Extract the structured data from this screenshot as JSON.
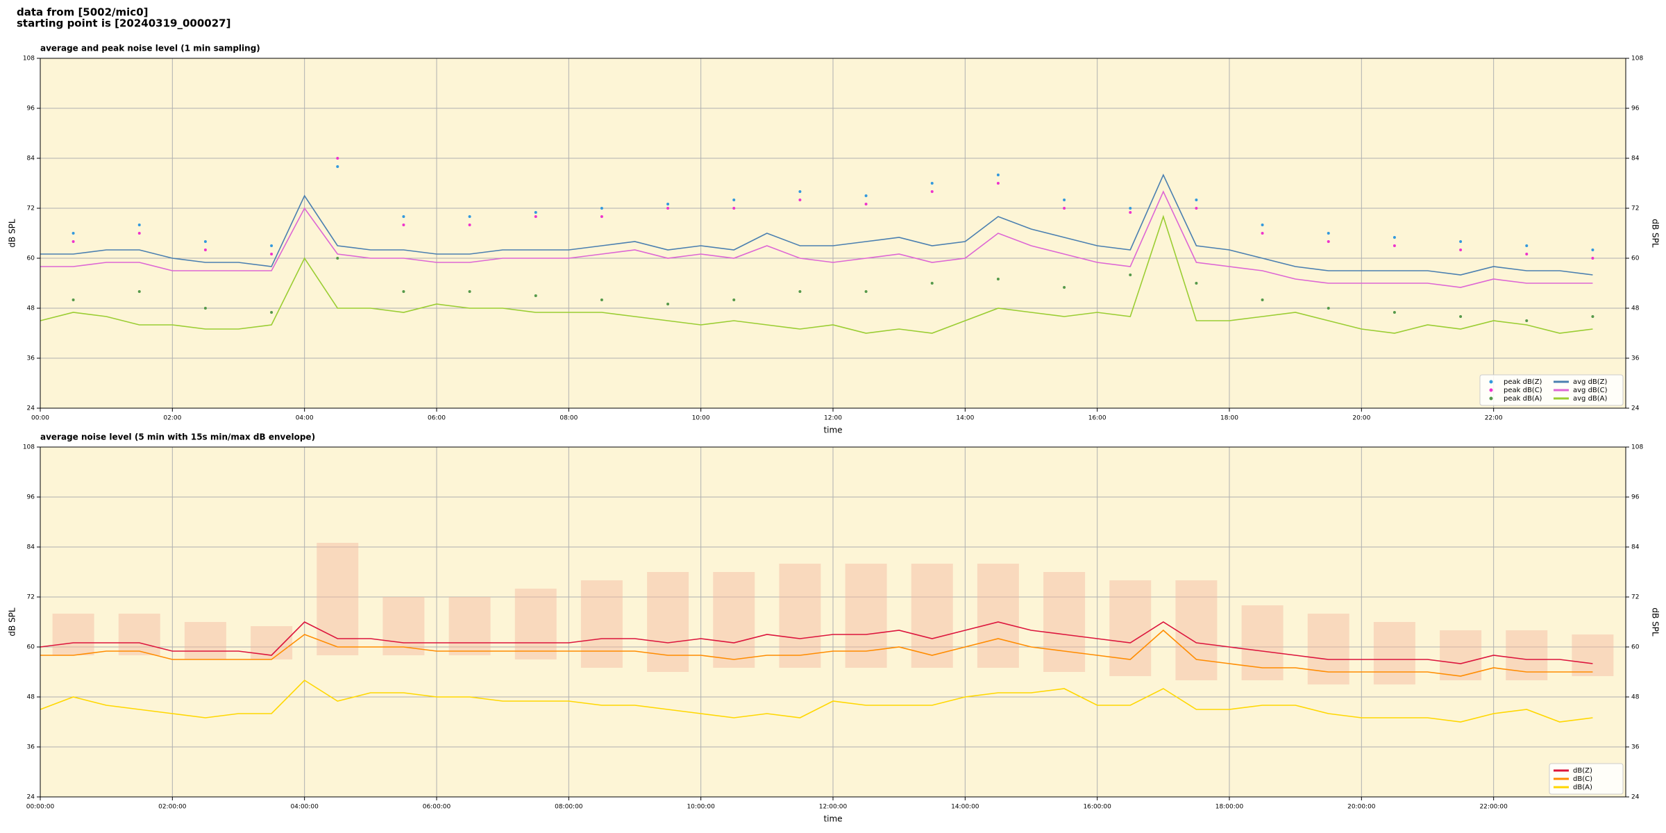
{
  "header": {
    "lines": [
      "data from [5002/mic0]",
      "starting point is [20240319_000027]"
    ]
  },
  "chart_data": [
    {
      "type": "line",
      "title": "average and peak noise level (1 min sampling)",
      "xlabel": "time",
      "ylabel": "dB SPL",
      "xlim": [
        0,
        24
      ],
      "ylim": [
        24,
        108
      ],
      "yticks": [
        24,
        36,
        48,
        60,
        72,
        84,
        96,
        108
      ],
      "xticks": [
        {
          "value": 0,
          "label": "00:00"
        },
        {
          "value": 2,
          "label": "02:00"
        },
        {
          "value": 4,
          "label": "04:00"
        },
        {
          "value": 6,
          "label": "06:00"
        },
        {
          "value": 8,
          "label": "08:00"
        },
        {
          "value": 10,
          "label": "10:00"
        },
        {
          "value": 12,
          "label": "12:00"
        },
        {
          "value": 14,
          "label": "14:00"
        },
        {
          "value": 16,
          "label": "16:00"
        },
        {
          "value": 18,
          "label": "18:00"
        },
        {
          "value": 20,
          "label": "20:00"
        },
        {
          "value": 22,
          "label": "22:00"
        }
      ],
      "grid": true,
      "legend": "lower right",
      "background": "#fdf5d6",
      "scatter_x": [
        0.5,
        1.5,
        2.5,
        3.5,
        4.5,
        5.5,
        6.5,
        7.5,
        8.5,
        9.5,
        10.5,
        11.5,
        12.5,
        13.5,
        14.5,
        15.5,
        16.5,
        17.5,
        18.5,
        19.5,
        20.5,
        21.5,
        22.5,
        23.5
      ],
      "scatter_series": [
        {
          "name": "peak dB(Z)",
          "color": "#3399dd",
          "values": [
            66,
            68,
            64,
            63,
            82,
            70,
            70,
            71,
            72,
            73,
            74,
            76,
            75,
            78,
            80,
            74,
            72,
            74,
            68,
            66,
            65,
            64,
            63,
            62
          ]
        },
        {
          "name": "peak dB(C)",
          "color": "#ee33cc",
          "values": [
            64,
            66,
            62,
            61,
            84,
            68,
            68,
            70,
            70,
            72,
            72,
            74,
            73,
            76,
            78,
            72,
            71,
            72,
            66,
            64,
            63,
            62,
            61,
            60
          ]
        },
        {
          "name": "peak dB(A)",
          "color": "#55994a",
          "values": [
            50,
            52,
            48,
            47,
            60,
            52,
            52,
            51,
            50,
            49,
            50,
            52,
            52,
            54,
            55,
            53,
            56,
            54,
            50,
            48,
            47,
            46,
            45,
            46
          ]
        }
      ],
      "x": [
        0,
        0.5,
        1,
        1.5,
        2,
        2.5,
        3,
        3.5,
        4,
        4.5,
        5,
        5.5,
        6,
        6.5,
        7,
        7.5,
        8,
        8.5,
        9,
        9.5,
        10,
        10.5,
        11,
        11.5,
        12,
        12.5,
        13,
        13.5,
        14,
        14.5,
        15,
        15.5,
        16,
        16.5,
        17,
        17.5,
        18,
        18.5,
        19,
        19.5,
        20,
        20.5,
        21,
        21.5,
        22,
        22.5,
        23,
        23.5
      ],
      "series": [
        {
          "name": "avg dB(Z)",
          "color": "#4a7fb0",
          "values": [
            61,
            61,
            62,
            62,
            60,
            59,
            59,
            58,
            75,
            63,
            62,
            62,
            61,
            61,
            62,
            62,
            62,
            63,
            64,
            62,
            63,
            62,
            66,
            63,
            63,
            64,
            65,
            63,
            64,
            70,
            67,
            65,
            63,
            62,
            80,
            63,
            62,
            60,
            58,
            57,
            57,
            57,
            57,
            56,
            58,
            57,
            57,
            56
          ]
        },
        {
          "name": "avg dB(C)",
          "color": "#dd66d4",
          "values": [
            58,
            58,
            59,
            59,
            57,
            57,
            57,
            57,
            72,
            61,
            60,
            60,
            59,
            59,
            60,
            60,
            60,
            61,
            62,
            60,
            61,
            60,
            63,
            60,
            59,
            60,
            61,
            59,
            60,
            66,
            63,
            61,
            59,
            58,
            76,
            59,
            58,
            57,
            55,
            54,
            54,
            54,
            54,
            53,
            55,
            54,
            54,
            54
          ]
        },
        {
          "name": "avg dB(A)",
          "color": "#9acd32",
          "values": [
            45,
            47,
            46,
            44,
            44,
            43,
            43,
            44,
            60,
            48,
            48,
            47,
            49,
            48,
            48,
            47,
            47,
            47,
            46,
            45,
            44,
            45,
            44,
            43,
            44,
            42,
            43,
            42,
            45,
            48,
            47,
            46,
            47,
            46,
            70,
            45,
            45,
            46,
            47,
            45,
            43,
            42,
            44,
            43,
            45,
            44,
            42,
            43
          ]
        }
      ]
    },
    {
      "type": "line",
      "title": "average noise level (5 min with 15s min/max dB envelope)",
      "xlabel": "time",
      "ylabel": "dB SPL",
      "xlim": [
        0,
        24
      ],
      "ylim": [
        24,
        108
      ],
      "yticks": [
        24,
        36,
        48,
        60,
        72,
        84,
        96,
        108
      ],
      "xticks": [
        {
          "value": 0,
          "label": "00:00:00"
        },
        {
          "value": 2,
          "label": "02:00:00"
        },
        {
          "value": 4,
          "label": "04:00:00"
        },
        {
          "value": 6,
          "label": "06:00:00"
        },
        {
          "value": 8,
          "label": "08:00:00"
        },
        {
          "value": 10,
          "label": "10:00:00"
        },
        {
          "value": 12,
          "label": "12:00:00"
        },
        {
          "value": 14,
          "label": "14:00:00"
        },
        {
          "value": 16,
          "label": "16:00:00"
        },
        {
          "value": 18,
          "label": "18:00:00"
        },
        {
          "value": 20,
          "label": "20:00:00"
        },
        {
          "value": 22,
          "label": "22:00:00"
        }
      ],
      "grid": true,
      "legend": "lower right",
      "background": "#fdf5d6",
      "envelope": {
        "color": "#f4b8a0",
        "x": [
          0.5,
          1.5,
          2.5,
          3.5,
          4.5,
          5.5,
          6.5,
          7.5,
          8.5,
          9.5,
          10.5,
          11.5,
          12.5,
          13.5,
          14.5,
          15.5,
          16.5,
          17.5,
          18.5,
          19.5,
          20.5,
          21.5,
          22.5,
          23.5
        ],
        "upper": [
          68,
          68,
          66,
          65,
          85,
          72,
          72,
          74,
          76,
          78,
          78,
          80,
          80,
          80,
          80,
          78,
          76,
          76,
          70,
          68,
          66,
          64,
          64,
          63
        ],
        "lower": [
          58,
          58,
          57,
          57,
          58,
          58,
          58,
          57,
          55,
          54,
          55,
          55,
          55,
          55,
          55,
          54,
          53,
          52,
          52,
          51,
          51,
          52,
          52,
          53
        ]
      },
      "x": [
        0,
        0.5,
        1,
        1.5,
        2,
        2.5,
        3,
        3.5,
        4,
        4.5,
        5,
        5.5,
        6,
        6.5,
        7,
        7.5,
        8,
        8.5,
        9,
        9.5,
        10,
        10.5,
        11,
        11.5,
        12,
        12.5,
        13,
        13.5,
        14,
        14.5,
        15,
        15.5,
        16,
        16.5,
        17,
        17.5,
        18,
        18.5,
        19,
        19.5,
        20,
        20.5,
        21,
        21.5,
        22,
        22.5,
        23,
        23.5
      ],
      "series": [
        {
          "name": "dB(Z)",
          "color": "#dc143c",
          "values": [
            60,
            61,
            61,
            61,
            59,
            59,
            59,
            58,
            66,
            62,
            62,
            61,
            61,
            61,
            61,
            61,
            61,
            62,
            62,
            61,
            62,
            61,
            63,
            62,
            63,
            63,
            64,
            62,
            64,
            66,
            64,
            63,
            62,
            61,
            66,
            61,
            60,
            59,
            58,
            57,
            57,
            57,
            57,
            56,
            58,
            57,
            57,
            56
          ]
        },
        {
          "name": "dB(C)",
          "color": "#ff8c00",
          "values": [
            58,
            58,
            59,
            59,
            57,
            57,
            57,
            57,
            63,
            60,
            60,
            60,
            59,
            59,
            59,
            59,
            59,
            59,
            59,
            58,
            58,
            57,
            58,
            58,
            59,
            59,
            60,
            58,
            60,
            62,
            60,
            59,
            58,
            57,
            64,
            57,
            56,
            55,
            55,
            54,
            54,
            54,
            54,
            53,
            55,
            54,
            54,
            54
          ]
        },
        {
          "name": "dB(A)",
          "color": "#ffd700",
          "values": [
            45,
            48,
            46,
            45,
            44,
            43,
            44,
            44,
            52,
            47,
            49,
            49,
            48,
            48,
            47,
            47,
            47,
            46,
            46,
            45,
            44,
            43,
            44,
            43,
            47,
            46,
            46,
            46,
            48,
            49,
            49,
            50,
            46,
            46,
            50,
            45,
            45,
            46,
            46,
            44,
            43,
            43,
            43,
            42,
            44,
            45,
            42,
            43
          ]
        }
      ]
    }
  ]
}
